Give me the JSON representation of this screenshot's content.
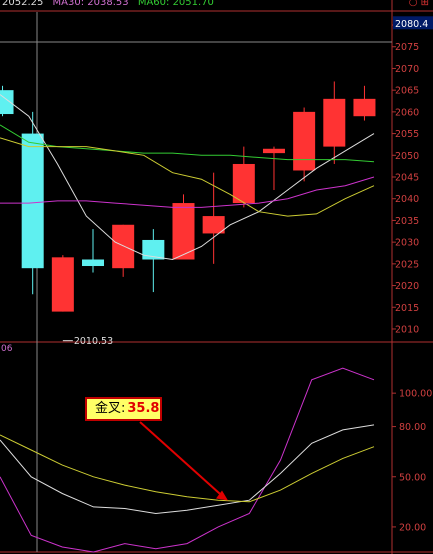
{
  "header": {
    "price_text": "2052.25",
    "ma30_text": "MA30: 2038.53",
    "ma60_text": "MA60: 2051.70",
    "close_glyph": "○ ⊞"
  },
  "lower_panel": {
    "label": "06"
  },
  "annotation": {
    "label": "金叉:",
    "value": "35.8"
  },
  "colors": {
    "background": "#000000",
    "up_candle": "#ff3333",
    "down_candle": "#5ff0f0",
    "ma_white": "#dddddd",
    "ma_green": "#33cc33",
    "ma_yellow": "#cccc33",
    "ma_purple": "#cc33cc",
    "axis": "#b03030",
    "crosshair": "#888888",
    "ma30_text": "#d070d0",
    "ma60_text": "#33cc33"
  },
  "chart_data": [
    {
      "type": "candlestick",
      "title": "",
      "ylim": [
        2007,
        2083
      ],
      "y_ticks": [
        2010,
        2015,
        2020,
        2025,
        2030,
        2035,
        2040,
        2045,
        2050,
        2055,
        2060,
        2065,
        2070,
        2075,
        2080
      ],
      "current_price_label": "2080.4",
      "low_marker": {
        "candle_index": 2,
        "value": 2010.53,
        "label": "2010.53"
      },
      "candles": [
        {
          "open": 2065.0,
          "high": 2066.0,
          "low": 2059.0,
          "close": 2059.5
        },
        {
          "open": 2055.0,
          "high": 2060.0,
          "low": 2018.0,
          "close": 2024.0
        },
        {
          "open": 2014.0,
          "high": 2027.0,
          "low": 2014.0,
          "close": 2026.5
        },
        {
          "open": 2026.0,
          "high": 2033.0,
          "low": 2023.0,
          "close": 2024.5
        },
        {
          "open": 2024.0,
          "high": 2034.0,
          "low": 2022.0,
          "close": 2034.0
        },
        {
          "open": 2030.5,
          "high": 2033.0,
          "low": 2018.5,
          "close": 2026.0
        },
        {
          "open": 2026.0,
          "high": 2041.0,
          "low": 2026.0,
          "close": 2039.0
        },
        {
          "open": 2032.0,
          "high": 2046.0,
          "low": 2025.0,
          "close": 2036.0
        },
        {
          "open": 2039.0,
          "high": 2052.0,
          "low": 2038.0,
          "close": 2048.0
        },
        {
          "open": 2050.5,
          "high": 2052.0,
          "low": 2042.0,
          "close": 2051.5
        },
        {
          "open": 2046.5,
          "high": 2061.0,
          "low": 2044.0,
          "close": 2060.0
        },
        {
          "open": 2052.0,
          "high": 2067.0,
          "low": 2048.0,
          "close": 2063.0
        },
        {
          "open": 2059.0,
          "high": 2066.0,
          "low": 2058.0,
          "close": 2063.0
        }
      ],
      "series": [
        {
          "color_key": "ma_white",
          "values": [
            2064.0,
            2059.0,
            2048.0,
            2036.0,
            2030.0,
            2027.0,
            2026.0,
            2029.0,
            2034.0,
            2037.0,
            2042.0,
            2047.0,
            2051.0,
            2055.0
          ]
        },
        {
          "color_key": "ma_green",
          "values": [
            2057.0,
            2053.0,
            2052.0,
            2051.5,
            2051.0,
            2050.5,
            2050.5,
            2050.0,
            2050.0,
            2049.5,
            2049.0,
            2049.0,
            2049.0,
            2048.5
          ]
        },
        {
          "color_key": "ma_yellow",
          "values": [
            2054.0,
            2052.0,
            2052.0,
            2052.0,
            2051.0,
            2050.0,
            2046.0,
            2044.5,
            2041.0,
            2037.0,
            2036.0,
            2036.5,
            2040.0,
            2043.0
          ]
        },
        {
          "color_key": "ma_purple",
          "values": [
            2039.0,
            2039.0,
            2039.5,
            2039.5,
            2039.0,
            2038.5,
            2038.0,
            2038.0,
            2038.5,
            2039.0,
            2040.0,
            2042.0,
            2043.0,
            2045.0
          ]
        }
      ]
    },
    {
      "type": "line",
      "title": "",
      "ylim": [
        5,
        130
      ],
      "y_ticks": [
        20.0,
        50.0,
        80.0,
        100.0
      ],
      "y_tick_labels": [
        "20.00",
        "50.00",
        "80.00",
        "100.00"
      ],
      "series": [
        {
          "color_key": "ma_purple",
          "values": [
            50.0,
            15.0,
            8.0,
            5.0,
            10.0,
            7.0,
            10.0,
            20.0,
            28.0,
            60.0,
            108.0,
            115.0,
            108.0
          ]
        },
        {
          "color_key": "ma_white",
          "values": [
            72.0,
            50.0,
            40.0,
            32.0,
            31.0,
            28.0,
            30.0,
            33.0,
            36.0,
            52.0,
            70.0,
            78.0,
            81.0
          ]
        },
        {
          "color_key": "ma_yellow",
          "values": [
            75.0,
            66.0,
            57.0,
            50.0,
            45.0,
            41.0,
            38.0,
            36.0,
            35.0,
            42.0,
            52.0,
            61.0,
            68.0
          ]
        }
      ]
    }
  ]
}
